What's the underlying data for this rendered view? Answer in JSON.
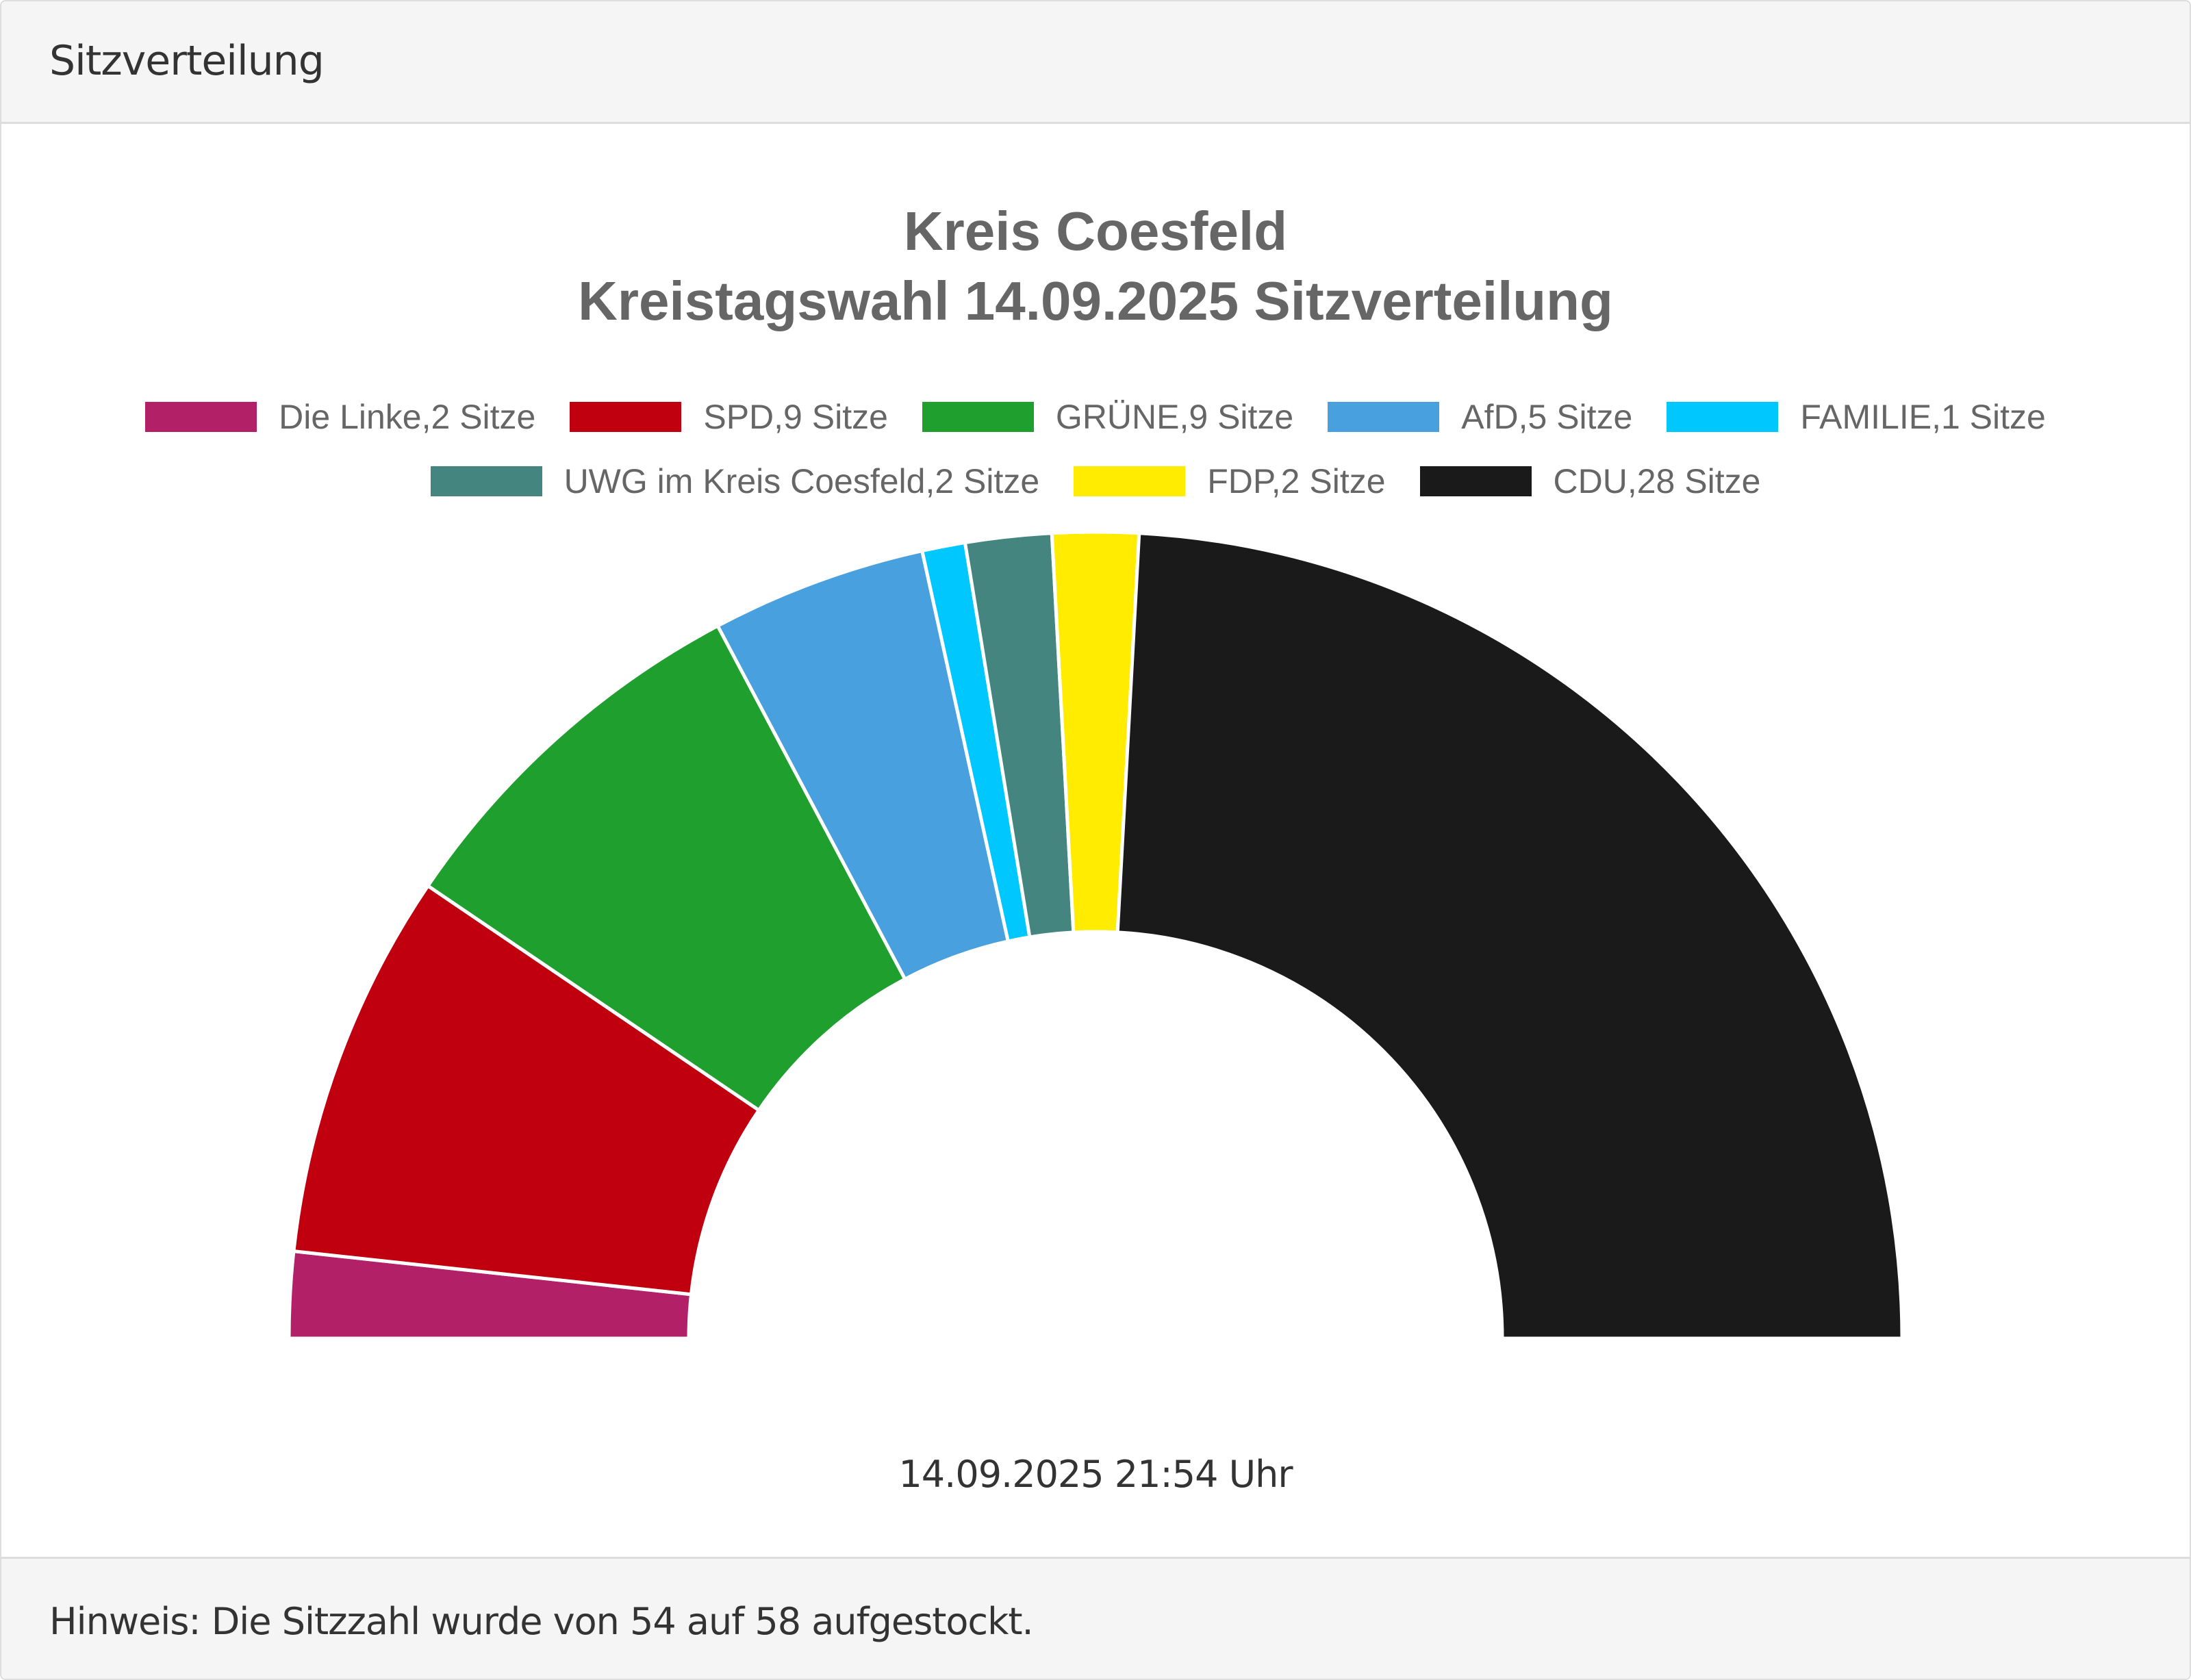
{
  "panel": {
    "header_title": "Sitzverteilung",
    "footer_note": "Hinweis: Die Sitzzahl wurde von 54 auf 58 aufgestockt."
  },
  "chart_data": {
    "type": "pie",
    "variant": "semicircle-donut",
    "title": "Kreis Coesfeld",
    "subtitle": "Kreistagswahl 14.09.2025 Sitzverteilung",
    "legend_position": "top",
    "timestamp": "14.09.2025 21:54 Uhr",
    "total_seats": 58,
    "series": [
      {
        "name": "Die Linke",
        "value": 2,
        "label": "Die Linke,2 Sitze",
        "color": "#b22067"
      },
      {
        "name": "SPD",
        "value": 9,
        "label": "SPD,9 Sitze",
        "color": "#c0000f"
      },
      {
        "name": "GRÜNE",
        "value": 9,
        "label": "GRÜNE,9 Sitze",
        "color": "#1fa02e"
      },
      {
        "name": "AfD",
        "value": 5,
        "label": "AfD,5 Sitze",
        "color": "#48a0de"
      },
      {
        "name": "FAMILIE",
        "value": 1,
        "label": "FAMILIE,1 Sitze",
        "color": "#00c8ff"
      },
      {
        "name": "UWG im Kreis Coesfeld",
        "value": 2,
        "label": "UWG im Kreis Coesfeld,2 Sitze",
        "color": "#45857f"
      },
      {
        "name": "FDP",
        "value": 2,
        "label": "FDP,2 Sitze",
        "color": "#ffec00"
      },
      {
        "name": "CDU",
        "value": 28,
        "label": "CDU,28 Sitze",
        "color": "#1a1a1a"
      }
    ]
  }
}
